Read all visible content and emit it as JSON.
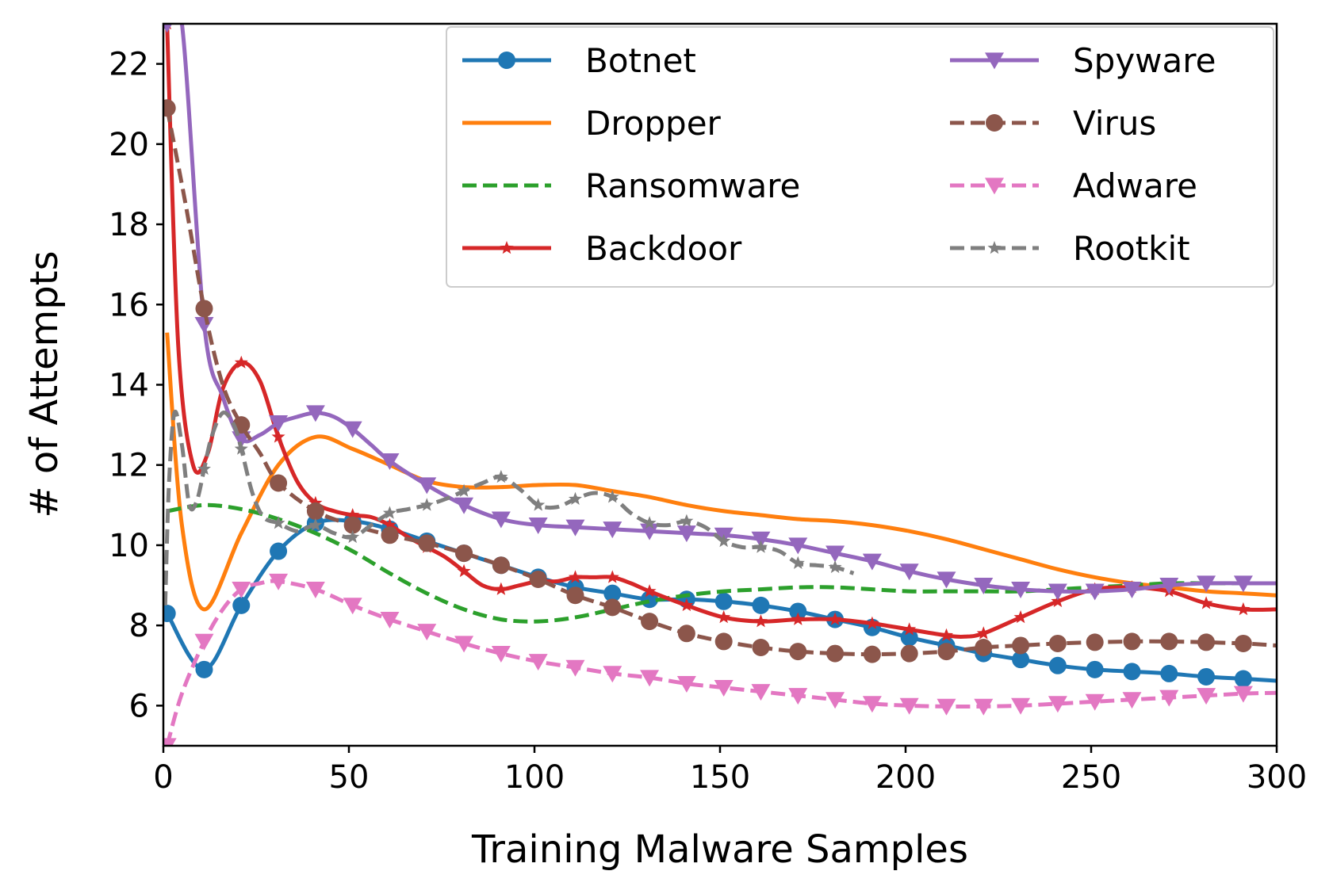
{
  "chart_data": {
    "type": "line",
    "xlabel": "Training Malware Samples",
    "ylabel": "# of Attempts",
    "xlim": [
      0,
      300
    ],
    "ylim": [
      5,
      23
    ],
    "xticks": [
      "0",
      "50",
      "100",
      "150",
      "200",
      "250",
      "300"
    ],
    "yticks": [
      "6",
      "8",
      "10",
      "12",
      "14",
      "16",
      "18",
      "20",
      "22"
    ],
    "grid": false,
    "legend_position": "top-right",
    "legend_columns": 2,
    "series": [
      {
        "name": "Botnet",
        "color": "#1f77b4",
        "line_style": "solid",
        "marker": "circle",
        "x": [
          1,
          11,
          21,
          31,
          41,
          51,
          61,
          71,
          81,
          91,
          101,
          111,
          121,
          131,
          141,
          151,
          161,
          171,
          181,
          191,
          201,
          211,
          221,
          231,
          241,
          251,
          261,
          271,
          281,
          291,
          300
        ],
        "y": [
          8.3,
          6.9,
          8.5,
          9.85,
          10.55,
          10.6,
          10.4,
          10.1,
          9.8,
          9.5,
          9.2,
          8.95,
          8.8,
          8.65,
          8.65,
          8.6,
          8.5,
          8.35,
          8.15,
          7.95,
          7.7,
          7.5,
          7.3,
          7.15,
          7.0,
          6.9,
          6.85,
          6.8,
          6.72,
          6.67,
          6.62
        ]
      },
      {
        "name": "Dropper",
        "color": "#ff7f0e",
        "line_style": "solid",
        "marker": "none",
        "x": [
          1,
          5,
          11,
          21,
          31,
          41,
          51,
          61,
          71,
          81,
          91,
          101,
          111,
          121,
          131,
          141,
          151,
          161,
          171,
          181,
          191,
          201,
          211,
          221,
          231,
          241,
          251,
          261,
          271,
          281,
          291,
          300
        ],
        "y": [
          15.3,
          10.5,
          8.4,
          10.3,
          12.0,
          12.7,
          12.4,
          12.0,
          11.6,
          11.45,
          11.45,
          11.5,
          11.5,
          11.35,
          11.2,
          11.0,
          10.85,
          10.75,
          10.65,
          10.6,
          10.5,
          10.35,
          10.15,
          9.9,
          9.65,
          9.4,
          9.2,
          9.05,
          8.95,
          8.85,
          8.8,
          8.75
        ]
      },
      {
        "name": "Ransomware",
        "color": "#2ca02c",
        "line_style": "dashed",
        "marker": "none",
        "x": [
          1,
          11,
          21,
          31,
          41,
          51,
          61,
          71,
          81,
          91,
          101,
          111,
          121,
          131,
          141,
          151,
          161,
          171,
          181,
          191,
          201,
          211,
          221,
          231,
          241,
          251,
          261,
          271,
          281,
          291,
          300
        ],
        "y": [
          10.85,
          11.0,
          10.9,
          10.65,
          10.3,
          9.85,
          9.3,
          8.8,
          8.4,
          8.15,
          8.1,
          8.2,
          8.4,
          8.6,
          8.75,
          8.85,
          8.9,
          8.95,
          8.95,
          8.9,
          8.85,
          8.85,
          8.85,
          8.85,
          8.9,
          8.95,
          9.0,
          9.05,
          9.05,
          9.05,
          9.05
        ]
      },
      {
        "name": "Backdoor",
        "color": "#d62728",
        "line_style": "solid",
        "marker": "star",
        "x": [
          1,
          4,
          8,
          12,
          16,
          21,
          26,
          31,
          36,
          41,
          46,
          51,
          56,
          61,
          66,
          71,
          76,
          81,
          86,
          91,
          96,
          101,
          106,
          111,
          116,
          121,
          126,
          131,
          141,
          151,
          161,
          171,
          181,
          191,
          201,
          211,
          216,
          221,
          231,
          241,
          251,
          261,
          271,
          281,
          291,
          300
        ],
        "y": [
          23.0,
          15.0,
          12.0,
          12.3,
          13.9,
          14.55,
          14.1,
          12.7,
          11.6,
          11.05,
          10.85,
          10.75,
          10.7,
          10.5,
          10.2,
          9.95,
          9.7,
          9.35,
          9.0,
          8.9,
          9.0,
          9.1,
          9.1,
          9.2,
          9.2,
          9.2,
          9.05,
          8.85,
          8.5,
          8.2,
          8.1,
          8.15,
          8.15,
          8.05,
          7.9,
          7.75,
          7.72,
          7.8,
          8.2,
          8.6,
          8.9,
          8.95,
          8.85,
          8.55,
          8.4,
          8.4
        ]
      },
      {
        "name": "Spyware",
        "color": "#9467bd",
        "line_style": "solid",
        "marker": "triangle-down",
        "x": [
          1,
          5,
          11,
          16,
          21,
          26,
          31,
          36,
          41,
          46,
          51,
          56,
          61,
          71,
          81,
          91,
          101,
          111,
          121,
          131,
          141,
          151,
          161,
          171,
          181,
          191,
          201,
          211,
          221,
          231,
          241,
          251,
          261,
          271,
          281,
          291,
          300
        ],
        "y": [
          23.0,
          23.0,
          15.5,
          13.7,
          12.65,
          12.75,
          13.05,
          13.2,
          13.3,
          13.2,
          12.9,
          12.5,
          12.1,
          11.5,
          11.0,
          10.65,
          10.5,
          10.45,
          10.4,
          10.35,
          10.3,
          10.25,
          10.15,
          10.0,
          9.8,
          9.6,
          9.35,
          9.15,
          9.0,
          8.9,
          8.85,
          8.85,
          8.9,
          9.0,
          9.05,
          9.05,
          9.05
        ]
      },
      {
        "name": "Virus",
        "color": "#8c564b",
        "line_style": "dashed",
        "marker": "circle",
        "x": [
          1,
          6,
          11,
          16,
          21,
          26,
          31,
          41,
          51,
          61,
          71,
          81,
          91,
          101,
          111,
          121,
          131,
          141,
          151,
          161,
          171,
          181,
          191,
          201,
          211,
          221,
          231,
          241,
          251,
          261,
          271,
          281,
          291,
          300
        ],
        "y": [
          20.9,
          18.5,
          15.9,
          14.0,
          13.0,
          12.3,
          11.55,
          10.85,
          10.5,
          10.25,
          10.05,
          9.8,
          9.5,
          9.15,
          8.75,
          8.45,
          8.1,
          7.8,
          7.6,
          7.45,
          7.35,
          7.3,
          7.28,
          7.3,
          7.35,
          7.45,
          7.5,
          7.55,
          7.58,
          7.6,
          7.6,
          7.58,
          7.55,
          7.5
        ]
      },
      {
        "name": "Adware",
        "color": "#e377c2",
        "line_style": "dashed",
        "marker": "triangle-down",
        "x": [
          1,
          5,
          11,
          16,
          21,
          26,
          31,
          41,
          51,
          61,
          71,
          81,
          91,
          101,
          111,
          121,
          131,
          141,
          151,
          161,
          171,
          181,
          191,
          201,
          211,
          221,
          231,
          241,
          251,
          261,
          271,
          281,
          291,
          300
        ],
        "y": [
          5.0,
          6.3,
          7.6,
          8.4,
          8.9,
          9.05,
          9.1,
          8.9,
          8.5,
          8.15,
          7.85,
          7.55,
          7.3,
          7.1,
          6.95,
          6.8,
          6.7,
          6.55,
          6.45,
          6.35,
          6.25,
          6.15,
          6.05,
          6.0,
          5.98,
          5.98,
          6.0,
          6.05,
          6.1,
          6.15,
          6.2,
          6.25,
          6.3,
          6.32
        ]
      },
      {
        "name": "Rootkit",
        "color": "#7f7f7f",
        "line_style": "dashed",
        "marker": "star",
        "x": [
          0.5,
          1.5,
          3,
          5,
          7,
          9,
          11,
          13,
          16,
          19,
          21,
          24,
          27,
          31,
          36,
          41,
          46,
          51,
          56,
          61,
          66,
          71,
          76,
          81,
          86,
          91,
          96,
          101,
          106,
          111,
          116,
          121,
          126,
          131,
          136,
          141,
          146,
          151,
          156,
          161,
          166,
          171,
          176,
          181,
          186
        ],
        "y": [
          8.5,
          11.5,
          13.3,
          12.5,
          11.0,
          11.1,
          11.9,
          12.7,
          13.3,
          13.0,
          12.4,
          11.3,
          10.7,
          10.55,
          10.35,
          10.5,
          10.3,
          10.2,
          10.5,
          10.8,
          10.9,
          11.0,
          11.15,
          11.35,
          11.55,
          11.7,
          11.4,
          11.0,
          10.95,
          11.15,
          11.3,
          11.2,
          10.8,
          10.55,
          10.5,
          10.6,
          10.45,
          10.1,
          9.95,
          9.95,
          9.85,
          9.55,
          9.5,
          9.45,
          9.3
        ]
      }
    ]
  }
}
